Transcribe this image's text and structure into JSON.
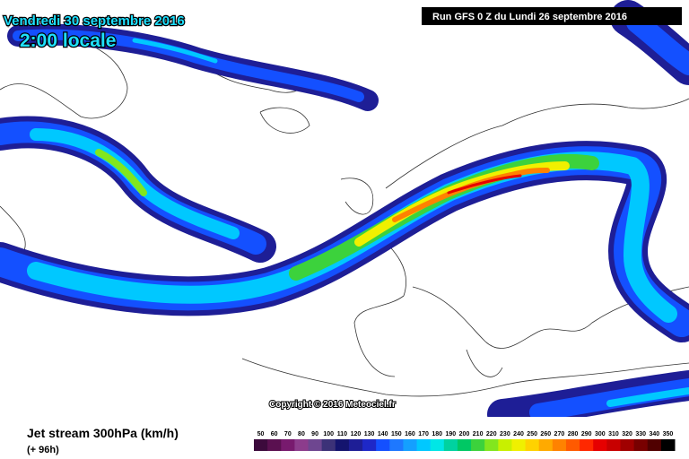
{
  "header": {
    "date": "Vendredi 30 septembre 2016",
    "time": "2:00 locale",
    "run": "Run GFS 0 Z du Lundi 26 septembre 2016"
  },
  "copyright": "Copyright © 2016 Meteociel.fr",
  "footer": {
    "title": "Jet stream 300hPa (km/h)",
    "lead": "(+ 96h)"
  },
  "legend": {
    "stops": [
      {
        "label": 50,
        "color": "#3c0a3c"
      },
      {
        "label": 60,
        "color": "#5a1050"
      },
      {
        "label": 70,
        "color": "#781a6e"
      },
      {
        "label": 80,
        "color": "#8c3c8c"
      },
      {
        "label": 90,
        "color": "#6e4690"
      },
      {
        "label": 100,
        "color": "#3c3278"
      },
      {
        "label": 110,
        "color": "#14146e"
      },
      {
        "label": 120,
        "color": "#1e1e96"
      },
      {
        "label": 130,
        "color": "#1e28c8"
      },
      {
        "label": 140,
        "color": "#1450ff"
      },
      {
        "label": 150,
        "color": "#1e78ff"
      },
      {
        "label": 160,
        "color": "#14a0ff"
      },
      {
        "label": 170,
        "color": "#00c8ff"
      },
      {
        "label": 180,
        "color": "#00e6e6"
      },
      {
        "label": 190,
        "color": "#00d2a0"
      },
      {
        "label": 200,
        "color": "#00c864"
      },
      {
        "label": 210,
        "color": "#3cd23c"
      },
      {
        "label": 220,
        "color": "#82e61e"
      },
      {
        "label": 230,
        "color": "#c8f000"
      },
      {
        "label": 240,
        "color": "#f0f000"
      },
      {
        "label": 250,
        "color": "#ffd200"
      },
      {
        "label": 260,
        "color": "#ffaa00"
      },
      {
        "label": 270,
        "color": "#ff8200"
      },
      {
        "label": 280,
        "color": "#ff5a00"
      },
      {
        "label": 290,
        "color": "#ff2800"
      },
      {
        "label": 300,
        "color": "#e60000"
      },
      {
        "label": 310,
        "color": "#c80000"
      },
      {
        "label": 320,
        "color": "#a00000"
      },
      {
        "label": 330,
        "color": "#780000"
      },
      {
        "label": 340,
        "color": "#500000"
      },
      {
        "label": 350,
        "color": "#000000"
      }
    ]
  }
}
